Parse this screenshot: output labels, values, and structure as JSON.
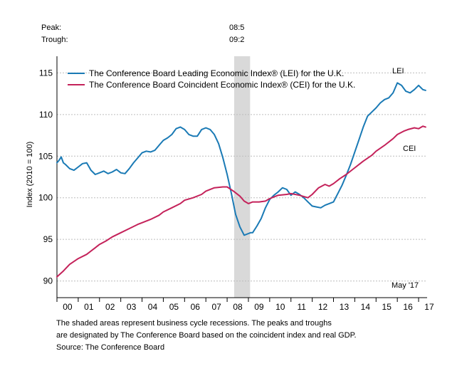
{
  "header": {
    "peak_label": "Peak:",
    "peak_value": "08:5",
    "trough_label": "Trough:",
    "trough_value": "09:2"
  },
  "chart_data": {
    "type": "line",
    "ylabel": "Index (2010 = 100)",
    "ylim": [
      88,
      117
    ],
    "yticks": [
      90,
      95,
      100,
      105,
      110,
      115
    ],
    "x_tick_labels": [
      "00",
      "01",
      "02",
      "03",
      "04",
      "05",
      "06",
      "07",
      "08",
      "09",
      "10",
      "11",
      "12",
      "13",
      "14",
      "15",
      "16",
      "17"
    ],
    "xlim": [
      2000.0,
      2017.4
    ],
    "grid": true,
    "legend_position": "top-left",
    "recession": {
      "start": 2008.33,
      "end": 2009.08
    },
    "annotations": {
      "lei": "LEI",
      "cei": "CEI",
      "date": "May '17"
    },
    "series": [
      {
        "name": "The Conference Board Leading Economic Index® (LEI) for the U.K.",
        "label": "LEI",
        "color": "#1a7ab5",
        "x": [
          2000.0,
          2000.1,
          2000.2,
          2000.3,
          2000.4,
          2000.6,
          2000.8,
          2001.0,
          2001.2,
          2001.4,
          2001.6,
          2001.8,
          2002.0,
          2002.2,
          2002.4,
          2002.6,
          2002.8,
          2003.0,
          2003.2,
          2003.4,
          2003.6,
          2003.8,
          2004.0,
          2004.2,
          2004.4,
          2004.6,
          2004.8,
          2005.0,
          2005.2,
          2005.4,
          2005.6,
          2005.8,
          2006.0,
          2006.2,
          2006.4,
          2006.6,
          2006.8,
          2007.0,
          2007.2,
          2007.4,
          2007.6,
          2007.8,
          2008.0,
          2008.2,
          2008.4,
          2008.6,
          2008.8,
          2009.0,
          2009.1,
          2009.2,
          2009.4,
          2009.6,
          2009.8,
          2010.0,
          2010.2,
          2010.4,
          2010.6,
          2010.8,
          2011.0,
          2011.2,
          2011.4,
          2011.6,
          2011.8,
          2012.0,
          2012.2,
          2012.4,
          2012.6,
          2012.8,
          2013.0,
          2013.2,
          2013.4,
          2013.6,
          2013.8,
          2014.0,
          2014.2,
          2014.4,
          2014.6,
          2014.8,
          2015.0,
          2015.2,
          2015.4,
          2015.6,
          2015.8,
          2016.0,
          2016.2,
          2016.4,
          2016.6,
          2016.8,
          2017.0,
          2017.2,
          2017.33
        ],
        "values": [
          104.2,
          104.5,
          104.9,
          104.2,
          104.0,
          103.5,
          103.3,
          103.7,
          104.1,
          104.2,
          103.3,
          102.8,
          103.0,
          103.2,
          102.9,
          103.1,
          103.4,
          103.0,
          102.9,
          103.5,
          104.2,
          104.8,
          105.4,
          105.6,
          105.5,
          105.7,
          106.3,
          106.9,
          107.2,
          107.6,
          108.3,
          108.5,
          108.2,
          107.6,
          107.4,
          107.4,
          108.2,
          108.4,
          108.2,
          107.6,
          106.5,
          104.8,
          102.8,
          100.5,
          98.0,
          96.5,
          95.5,
          95.7,
          95.8,
          95.8,
          96.6,
          97.5,
          98.8,
          99.8,
          100.3,
          100.7,
          101.2,
          101.0,
          100.3,
          100.7,
          100.4,
          100.0,
          99.5,
          99.0,
          98.9,
          98.8,
          99.1,
          99.3,
          99.5,
          100.5,
          101.5,
          102.7,
          104.0,
          105.5,
          107.0,
          108.5,
          109.8,
          110.3,
          110.8,
          111.4,
          111.8,
          112.0,
          112.6,
          113.8,
          113.5,
          112.8,
          112.6,
          113.0,
          113.5,
          113.0,
          112.9
        ]
      },
      {
        "name": "The Conference Board Coincident Economic Index® (CEI) for the U.K.",
        "label": "CEI",
        "color": "#c4225a",
        "x": [
          2000.0,
          2000.3,
          2000.6,
          2001.0,
          2001.4,
          2001.8,
          2002.0,
          2002.3,
          2002.6,
          2003.0,
          2003.4,
          2003.8,
          2004.0,
          2004.4,
          2004.8,
          2005.0,
          2005.4,
          2005.8,
          2006.0,
          2006.4,
          2006.8,
          2007.0,
          2007.4,
          2007.8,
          2008.0,
          2008.3,
          2008.6,
          2008.8,
          2009.0,
          2009.2,
          2009.5,
          2009.8,
          2010.0,
          2010.4,
          2010.8,
          2011.0,
          2011.4,
          2011.8,
          2012.0,
          2012.3,
          2012.6,
          2012.8,
          2013.0,
          2013.3,
          2013.6,
          2014.0,
          2014.4,
          2014.8,
          2015.0,
          2015.4,
          2015.8,
          2016.0,
          2016.3,
          2016.5,
          2016.8,
          2017.0,
          2017.2,
          2017.33
        ],
        "values": [
          90.5,
          91.2,
          92.0,
          92.7,
          93.2,
          94.0,
          94.4,
          94.8,
          95.3,
          95.8,
          96.3,
          96.8,
          97.0,
          97.4,
          97.9,
          98.3,
          98.8,
          99.3,
          99.7,
          100.0,
          100.4,
          100.8,
          101.2,
          101.3,
          101.3,
          100.8,
          100.2,
          99.6,
          99.3,
          99.5,
          99.5,
          99.6,
          99.9,
          100.3,
          100.4,
          100.5,
          100.3,
          100.0,
          100.4,
          101.2,
          101.6,
          101.4,
          101.7,
          102.3,
          102.8,
          103.6,
          104.4,
          105.1,
          105.6,
          106.3,
          107.1,
          107.6,
          108.0,
          108.2,
          108.4,
          108.3,
          108.6,
          108.5
        ]
      }
    ]
  },
  "footnotes": {
    "line1": "The shaded areas represent business cycle recessions. The peaks and troughs",
    "line2": "are designated by The Conference Board based on the coincident index and real GDP.",
    "line3": "Source: The Conference Board"
  }
}
